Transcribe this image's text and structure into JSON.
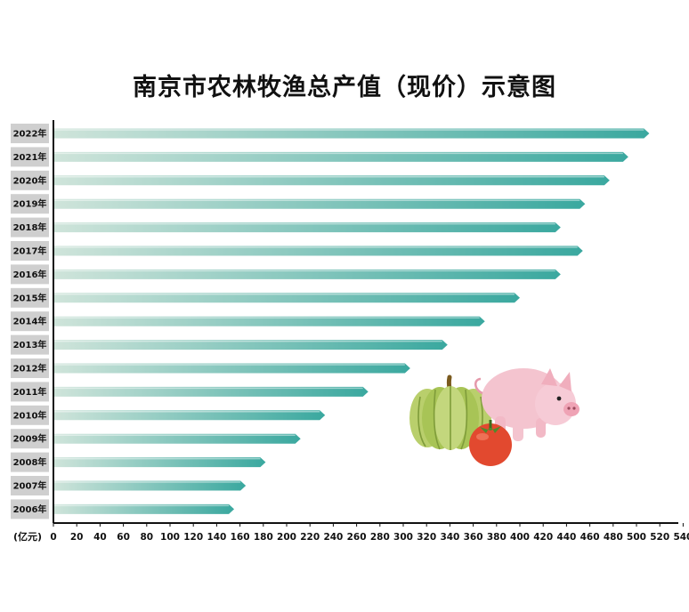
{
  "chart_data": {
    "type": "bar",
    "orientation": "horizontal",
    "title": "南京市农林牧渔总产值（现价）示意图",
    "xlabel": "(亿元)",
    "ylabel": "",
    "xlim": [
      0,
      540
    ],
    "x_ticks": [
      0,
      20,
      40,
      60,
      80,
      100,
      120,
      140,
      160,
      180,
      200,
      220,
      240,
      260,
      280,
      300,
      320,
      340,
      360,
      380,
      400,
      420,
      440,
      460,
      480,
      500,
      520,
      540
    ],
    "categories": [
      "2022年",
      "2021年",
      "2020年",
      "2019年",
      "2018年",
      "2017年",
      "2016年",
      "2015年",
      "2014年",
      "2013年",
      "2012年",
      "2011年",
      "2010年",
      "2009年",
      "2008年",
      "2007年",
      "2006年"
    ],
    "values": [
      511,
      493,
      477,
      456,
      435,
      454,
      435,
      400,
      370,
      338,
      306,
      270,
      233,
      212,
      182,
      165,
      155
    ],
    "grid": false,
    "legend": "none",
    "colors": {
      "bar_start": "#cfe4da",
      "bar_end": "#3aa89f",
      "label_bg": "#cfcfcf",
      "axis": "#111111"
    }
  },
  "decoration": {
    "icons": [
      "pumpkin-icon",
      "tomato-icon",
      "pig-icon"
    ]
  }
}
